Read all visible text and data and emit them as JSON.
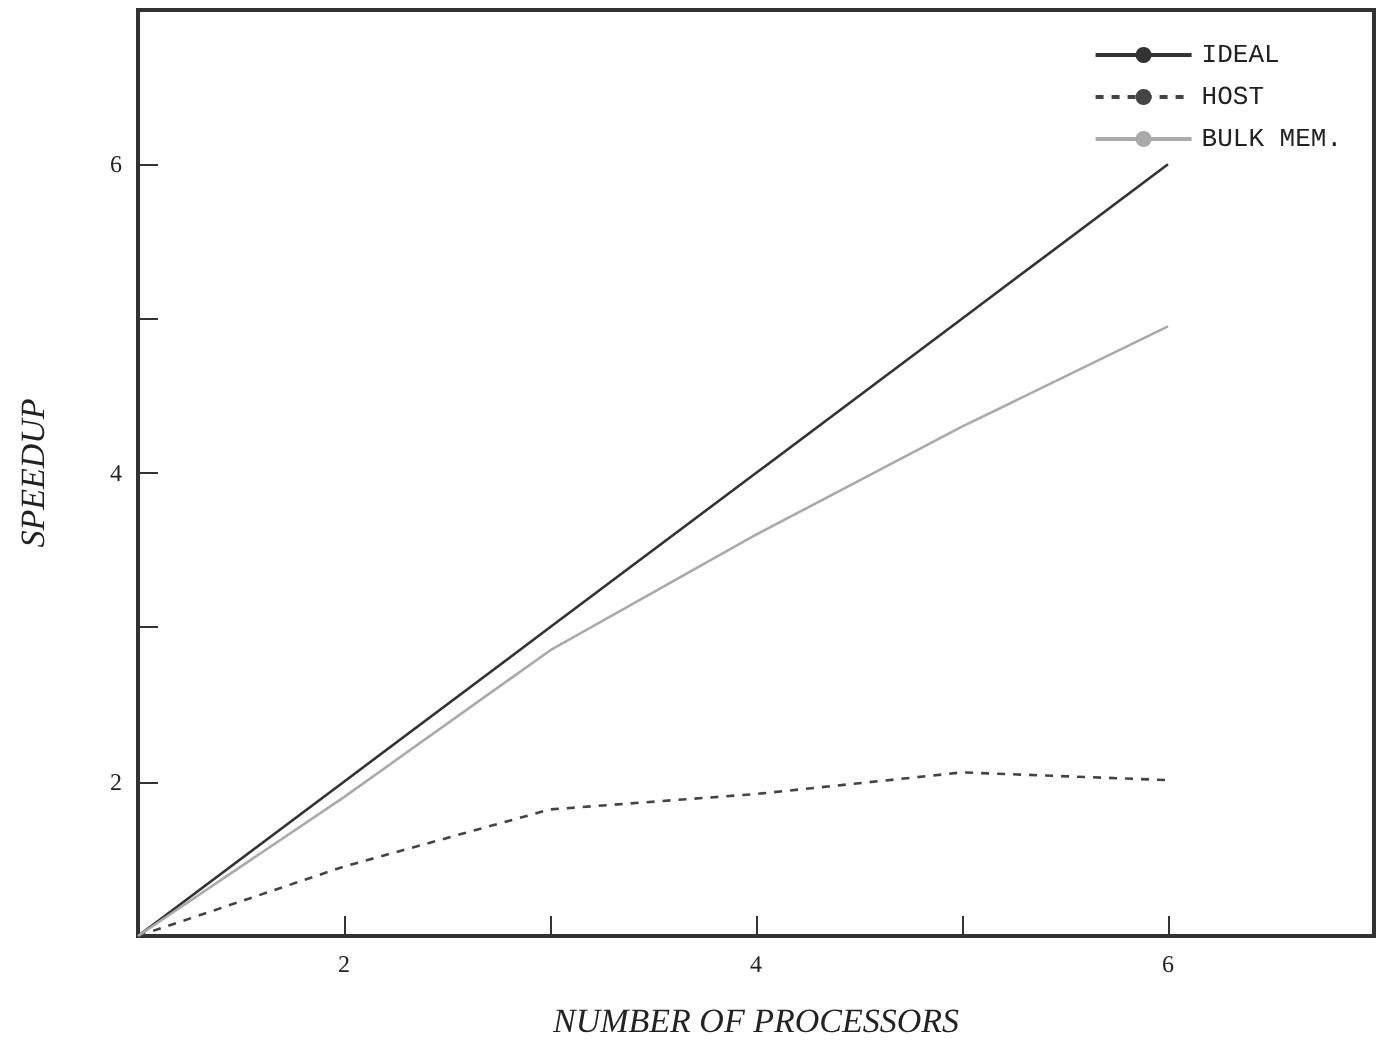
{
  "chart_data": {
    "type": "line",
    "xlabel": "NUMBER OF PROCESSORS",
    "ylabel": "SPEEDUP",
    "xlim": [
      1,
      7
    ],
    "ylim": [
      1,
      7
    ],
    "xticks": [
      2,
      {
        "value": 3,
        "label": null
      },
      4,
      {
        "value": 5,
        "label": null
      },
      6
    ],
    "yticks": [
      2,
      {
        "value": 3,
        "label": null
      },
      4,
      {
        "value": 5,
        "label": null
      },
      6
    ],
    "x": [
      1,
      2,
      3,
      4,
      5,
      6
    ],
    "grid": false,
    "legend": "top right",
    "marker": "none",
    "series": [
      {
        "name": "IDEAL",
        "color": "#333333",
        "line_style": "solid",
        "values": [
          1,
          2,
          3,
          4,
          5,
          6
        ]
      },
      {
        "name": "HOST",
        "color": "#444444",
        "line_style": "dashed",
        "values": [
          1,
          1.45,
          1.82,
          1.92,
          2.06,
          2.01
        ]
      },
      {
        "name": "BULK MEM.",
        "color": "#aaaaaa",
        "line_style": "solid",
        "values": [
          1,
          1.9,
          2.85,
          3.6,
          4.3,
          4.95
        ]
      }
    ]
  }
}
